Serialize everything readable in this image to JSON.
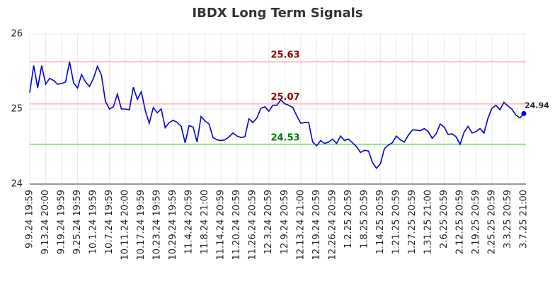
{
  "chart_data": {
    "type": "line",
    "title": "IBDX Long Term Signals",
    "categories": [
      "9.9.24 19:59",
      null,
      null,
      null,
      "9.13.24 20:00",
      null,
      null,
      null,
      "9.19.24 19:59",
      null,
      null,
      null,
      "9.25.24 19:59",
      null,
      null,
      null,
      "10.1.24 19:59",
      null,
      null,
      null,
      "10.7.24 19:59",
      null,
      null,
      null,
      "10.11.24 20:00",
      null,
      null,
      null,
      "10.17.24 19:59",
      null,
      null,
      null,
      "10.23.24 19:59",
      null,
      null,
      null,
      "10.29.24 19:59",
      null,
      null,
      null,
      "11.4.24 20:59",
      null,
      null,
      null,
      "11.8.24 21:00",
      null,
      null,
      null,
      "11.14.24 20:59",
      null,
      null,
      null,
      "11.20.24 20:59",
      null,
      null,
      null,
      "11.26.24 20:59",
      null,
      null,
      null,
      "12.3.24 20:59",
      null,
      null,
      null,
      "12.9.24 20:59",
      null,
      null,
      null,
      "12.13.24 21:00",
      null,
      null,
      null,
      "12.19.24 20:59",
      null,
      null,
      null,
      "12.26.24 20:59",
      null,
      null,
      null,
      "1.2.25 20:59",
      null,
      null,
      null,
      "1.8.25 20:59",
      null,
      null,
      null,
      "1.14.25 20:59",
      null,
      null,
      null,
      "1.21.25 20:59",
      null,
      null,
      null,
      "1.27.25 20:59",
      null,
      null,
      null,
      "1.31.25 21:00",
      null,
      null,
      null,
      "2.6.25 20:59",
      null,
      null,
      null,
      "2.12.25 20:59",
      null,
      null,
      null,
      "2.19.25 20:59",
      null,
      null,
      null,
      "2.25.25 20:59",
      null,
      null,
      null,
      "3.3.25 20:59",
      null,
      null,
      null,
      "3.7.25 21:00"
    ],
    "values": [
      25.22,
      25.58,
      25.28,
      25.58,
      25.33,
      25.41,
      25.38,
      25.33,
      25.34,
      25.36,
      25.63,
      25.35,
      25.28,
      25.46,
      25.36,
      25.3,
      25.41,
      25.57,
      25.45,
      25.1,
      25.0,
      25.03,
      25.2,
      25.0,
      25.0,
      24.99,
      25.29,
      25.13,
      25.23,
      24.98,
      24.81,
      25.02,
      24.95,
      25.0,
      24.75,
      24.82,
      24.85,
      24.82,
      24.77,
      24.55,
      24.78,
      24.76,
      24.56,
      24.9,
      24.84,
      24.8,
      24.62,
      24.59,
      24.58,
      24.59,
      24.63,
      24.68,
      24.64,
      24.62,
      24.63,
      24.87,
      24.82,
      24.88,
      25.01,
      25.03,
      24.97,
      25.05,
      25.05,
      25.12,
      25.07,
      25.05,
      25.02,
      24.91,
      24.81,
      24.82,
      24.82,
      24.56,
      24.51,
      24.58,
      24.54,
      24.56,
      24.6,
      24.54,
      24.64,
      24.58,
      24.6,
      24.55,
      24.5,
      24.42,
      24.45,
      24.44,
      24.29,
      24.21,
      24.27,
      24.47,
      24.52,
      24.55,
      24.64,
      24.59,
      24.56,
      24.65,
      24.72,
      24.72,
      24.71,
      24.74,
      24.7,
      24.61,
      24.67,
      24.8,
      24.76,
      24.66,
      24.67,
      24.63,
      24.53,
      24.69,
      24.77,
      24.68,
      24.7,
      24.74,
      24.68,
      24.88,
      25.01,
      25.05,
      24.99,
      25.09,
      25.04,
      25.0,
      24.92,
      24.88,
      24.94
    ],
    "color": "#0000cc",
    "ylim": [
      24,
      26
    ],
    "yticks": [
      24,
      25,
      26
    ],
    "grid": true,
    "lines": [
      {
        "value": 25.63,
        "color": "#ffc0c0",
        "label_color": "#8b0000"
      },
      {
        "value": 25.07,
        "color": "#ffc0c0",
        "label_color": "#8b0000"
      },
      {
        "value": 24.53,
        "color": "#90e090",
        "label_color": "#007700"
      }
    ]
  }
}
